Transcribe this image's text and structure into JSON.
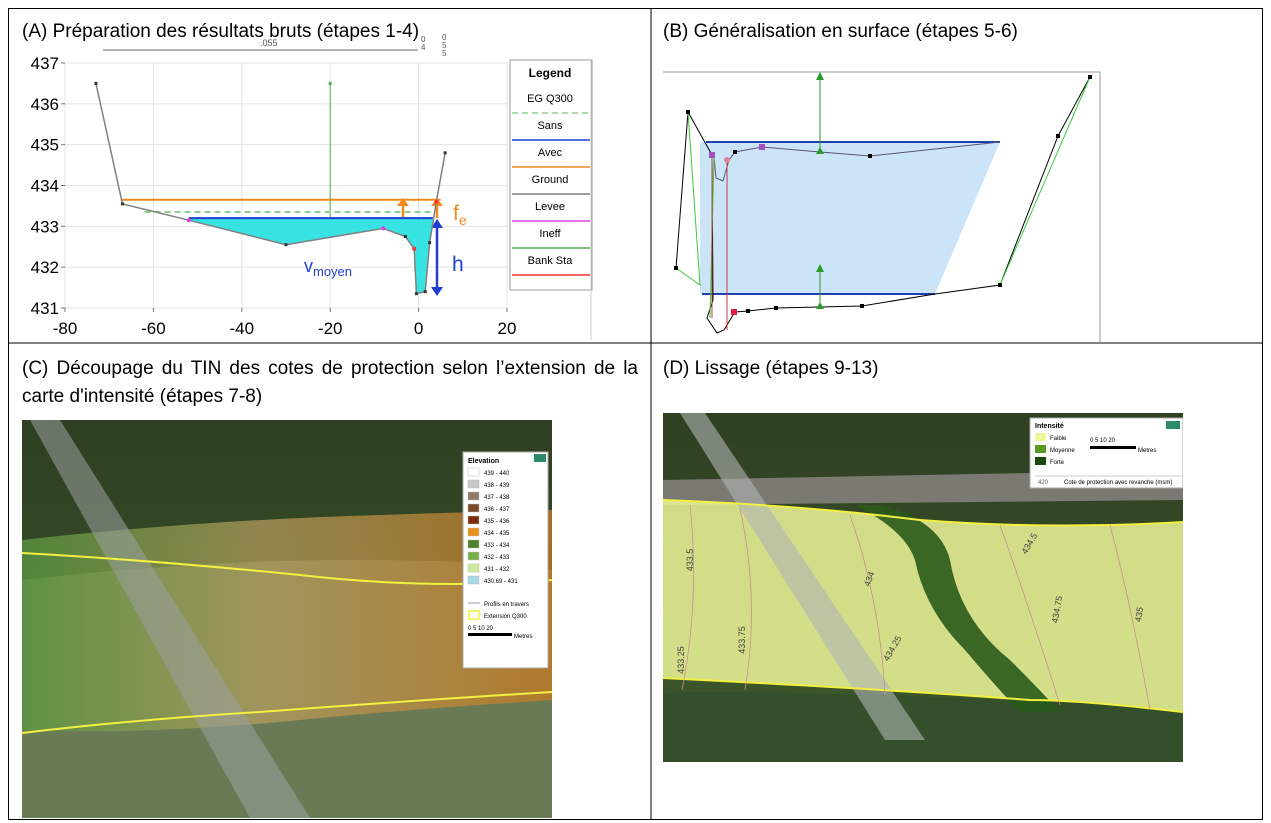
{
  "captions": [
    "(A) Préparation des résultats bruts (étapes 1-4)",
    "(B) Généralisation en surface (étapes 5-6)",
    "(C) Découpage du TIN des cotes de protection selon l’extension de la carte d'intensité (étapes 7-8)",
    "(D) Lissage (étapes 9-13)"
  ],
  "chart_data": {
    "type": "line",
    "xlim": [
      -80,
      20
    ],
    "ylim": [
      431,
      437
    ],
    "xticks": [
      -80,
      -60,
      -40,
      -20,
      0,
      20
    ],
    "yticks": [
      431,
      432,
      433,
      434,
      435,
      436,
      437
    ],
    "grid": true,
    "x": [
      -73,
      -67,
      -52,
      -30,
      -8,
      -3,
      -1,
      -0.5,
      1.5,
      2.5,
      4,
      6
    ],
    "series": [
      {
        "name": "Ground",
        "color": "#808080",
        "values": [
          436.5,
          433.55,
          433.15,
          432.55,
          432.95,
          432.75,
          432.45,
          431.35,
          431.4,
          432.6,
          433.6,
          434.8
        ]
      }
    ],
    "levels": [
      {
        "name": "EG Q300",
        "color": "#8fcf8f",
        "dashed": true,
        "value": 433.35,
        "from": -62,
        "to": 3
      },
      {
        "name": "Sans",
        "color": "#1f3fd0",
        "dashed": false,
        "value": 433.2,
        "from": -52,
        "to": 3.2
      },
      {
        "name": "Avec",
        "color": "#f08a1c",
        "dashed": false,
        "value": 433.65,
        "from": -67,
        "to": 5
      }
    ],
    "ineff": {
      "name": "Ineff",
      "color": "#4caf50",
      "x": -20,
      "values": [
        433.2,
        436.5
      ]
    },
    "levee": {
      "name": "Levee",
      "color": "#e040e0",
      "x": [
        -52,
        -8
      ],
      "values": [
        433.15,
        432.95
      ]
    },
    "bank": {
      "name": "Bank Sta",
      "color": "#ff3030",
      "x": [
        -1,
        4
      ],
      "values": [
        432.45,
        433.6
      ]
    },
    "legend_title": "Legend",
    "annotations": {
      "roughness": ".055",
      "sta1": [
        "0",
        "4"
      ],
      "sta2": [
        "0",
        "5",
        "5"
      ],
      "fe": [
        "f",
        "e"
      ],
      "h": "h",
      "v": [
        "v",
        "moyen"
      ]
    }
  },
  "legend_c": {
    "title": "Elevation",
    "items": [
      {
        "label": "439 - 440",
        "color": "#ffffff"
      },
      {
        "label": "438 - 439",
        "color": "#c8c8c8"
      },
      {
        "label": "437 - 438",
        "color": "#8b786a"
      },
      {
        "label": "436 - 437",
        "color": "#7a4a2a"
      },
      {
        "label": "435 - 436",
        "color": "#7a2a0e"
      },
      {
        "label": "434 - 435",
        "color": "#e8901a"
      },
      {
        "label": "433 - 434",
        "color": "#4f7f2a"
      },
      {
        "label": "432 - 433",
        "color": "#79b04c"
      },
      {
        "label": "431 - 432",
        "color": "#cfeaa0"
      },
      {
        "label": "430.69 - 431",
        "color": "#a8d8e4"
      }
    ],
    "profiles": "Profils en travers",
    "extension": "Extension Q300",
    "scale": "0  5  10     20",
    "unit": "Metres"
  },
  "legend_d": {
    "title": "Intensité",
    "items": [
      {
        "label": "Faible",
        "color": "#eef79a"
      },
      {
        "label": "Moyenne",
        "color": "#5a9a20"
      },
      {
        "label": "Forte",
        "color": "#1a4a10"
      }
    ],
    "scale": "0  5  10     20",
    "unit": "Metres",
    "sample": "420",
    "protection": "Cote de protection avec revanche (msm)"
  },
  "contours_d": [
    "433.5",
    "433.25",
    "433.75",
    "434",
    "434.25",
    "434.5",
    "434.75",
    "435"
  ]
}
